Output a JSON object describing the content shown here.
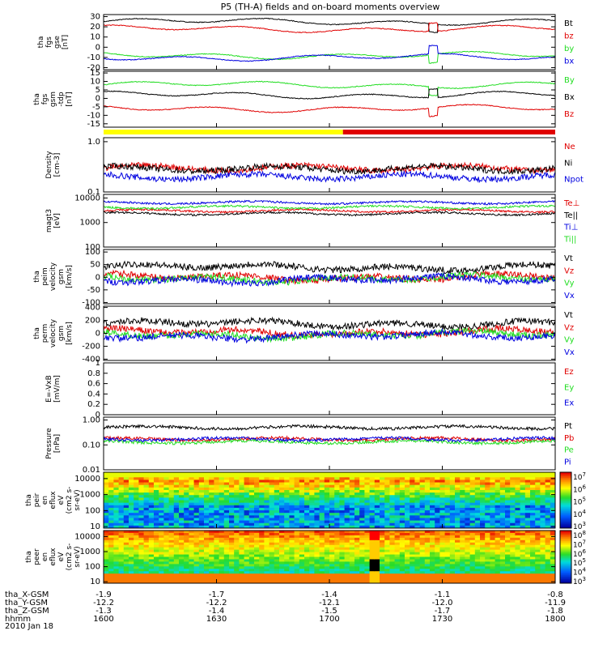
{
  "title": "P5 (TH-A) fields and on-board moments overview",
  "date_label": "2010 Jan 18",
  "colors": {
    "black": "#000000",
    "red": "#e00000",
    "green": "#22dd22",
    "blue": "#0000e0",
    "yellow": "#ffff00"
  },
  "chart_data": [
    {
      "type": "line",
      "name": "fgs_gse",
      "ylabel": [
        "tha",
        "fgs",
        "gse",
        "[nT]"
      ],
      "ylim": [
        -22,
        32
      ],
      "yticks": [
        30,
        20,
        10,
        0,
        -10,
        -20
      ],
      "series": [
        {
          "name": "Bt",
          "color": "black",
          "level": 25
        },
        {
          "name": "bz",
          "color": "red",
          "level": 18
        },
        {
          "name": "by",
          "color": "green",
          "level": -8
        },
        {
          "name": "bx",
          "color": "blue",
          "level": -10
        }
      ]
    },
    {
      "type": "line",
      "name": "fgs_gsm",
      "ylabel": [
        "tha",
        "fgs",
        "gsm",
        "-tdp",
        "[nT]"
      ],
      "ylim": [
        -17,
        16
      ],
      "yticks": [
        15,
        10,
        5,
        0,
        -5,
        -10,
        -15
      ],
      "series": [
        {
          "name": "By",
          "color": "green",
          "level": 8
        },
        {
          "name": "Bx",
          "color": "black",
          "level": 2
        },
        {
          "name": "Bz",
          "color": "red",
          "level": -6
        }
      ]
    },
    {
      "type": "line",
      "name": "density",
      "ylabel": [
        "Density",
        "[cm-3]"
      ],
      "log": true,
      "ylim": [
        0.1,
        1.2
      ],
      "yticks": [
        {
          "v": 1.0,
          "t": "1.0"
        },
        {
          "v": 0.1,
          "t": "0.1"
        }
      ],
      "series": [
        {
          "name": "Ne",
          "color": "red",
          "level": 0.3
        },
        {
          "name": "Ni",
          "color": "black",
          "level": 0.29
        },
        {
          "name": "Npot",
          "color": "blue",
          "level": 0.2
        }
      ]
    },
    {
      "type": "line",
      "name": "temperature",
      "ylabel": [
        "magt3",
        "[eV]"
      ],
      "log": true,
      "ylim": [
        100,
        14000
      ],
      "yticks": [
        {
          "v": 10000,
          "t": "10000"
        },
        {
          "v": 1000,
          "t": "1000"
        },
        {
          "v": 100,
          "t": "100"
        }
      ],
      "series": [
        {
          "name": "Te⊥",
          "color": "red",
          "level": 3000
        },
        {
          "name": "Te||",
          "color": "black",
          "level": 2300
        },
        {
          "name": "Ti⊥",
          "color": "blue",
          "level": 6500
        },
        {
          "name": "Ti||",
          "color": "green",
          "level": 4200
        }
      ]
    },
    {
      "type": "line",
      "name": "peim_velocity",
      "ylabel": [
        "tha",
        "peim",
        "velocity",
        "gsm",
        "[km/s]"
      ],
      "ylim": [
        -105,
        110
      ],
      "yticks": [
        100,
        50,
        0,
        -50,
        -100
      ],
      "series": [
        {
          "name": "Vt",
          "color": "black",
          "level": 40
        },
        {
          "name": "Vz",
          "color": "red",
          "level": 0
        },
        {
          "name": "Vy",
          "color": "green",
          "level": -5
        },
        {
          "name": "Vx",
          "color": "blue",
          "level": -10
        }
      ]
    },
    {
      "type": "line",
      "name": "perm_velocity",
      "ylabel": [
        "tha",
        "perm",
        "velocity",
        "gsm",
        "[km/s]"
      ],
      "ylim": [
        -420,
        420
      ],
      "yticks": [
        400,
        200,
        0,
        -200,
        -400
      ],
      "series": [
        {
          "name": "Vt",
          "color": "black",
          "level": 150
        },
        {
          "name": "Vz",
          "color": "red",
          "level": 20
        },
        {
          "name": "Vy",
          "color": "green",
          "level": -20
        },
        {
          "name": "Vx",
          "color": "blue",
          "level": -40
        }
      ]
    },
    {
      "type": "line",
      "name": "efield",
      "ylabel": [
        "E=-VxB",
        "[mV/m]"
      ],
      "ylim": [
        0,
        1
      ],
      "yticks": [
        1.0,
        0.8,
        0.6,
        0.4,
        0.2,
        0.0
      ],
      "series": [
        {
          "name": "Ez",
          "color": "red"
        },
        {
          "name": "Ey",
          "color": "green"
        },
        {
          "name": "Ex",
          "color": "blue"
        }
      ]
    },
    {
      "type": "line",
      "name": "pressure",
      "ylabel": [
        "Pressure",
        "[nPa]"
      ],
      "log": true,
      "ylim": [
        0.01,
        1.3
      ],
      "yticks": [
        {
          "v": 1.0,
          "t": "1.00"
        },
        {
          "v": 0.1,
          "t": "0.10"
        },
        {
          "v": 0.01,
          "t": "0.01"
        }
      ],
      "series": [
        {
          "name": "Pt",
          "color": "black",
          "level": 0.5
        },
        {
          "name": "Pb",
          "color": "red",
          "level": 0.17
        },
        {
          "name": "Pe",
          "color": "green",
          "level": 0.13
        },
        {
          "name": "Pi",
          "color": "blue",
          "level": 0.17
        }
      ]
    },
    {
      "type": "heatmap",
      "name": "peir_spec",
      "ylabel": [
        "tha",
        "peir",
        "en",
        "eflux",
        "eV",
        "(cm2 s-",
        "sr-eV)"
      ],
      "log": true,
      "ylim": [
        8,
        25000
      ],
      "yticks": [
        {
          "v": 10000,
          "t": "10000"
        },
        {
          "v": 1000,
          "t": "1000"
        },
        {
          "v": 100,
          "t": "100"
        },
        {
          "v": 10,
          "t": "10"
        }
      ],
      "colorbar": {
        "range": [
          3,
          7
        ],
        "labels": [
          "10^7",
          "10^6",
          "10^5",
          "10^4",
          "10^3"
        ]
      }
    },
    {
      "type": "heatmap",
      "name": "peer_spec",
      "ylabel": [
        "tha",
        "peer",
        "en",
        "eflux",
        "eV",
        "(cm2 s-",
        "sr-eV)"
      ],
      "log": true,
      "ylim": [
        8,
        25000
      ],
      "yticks": [
        {
          "v": 10000,
          "t": "10000"
        },
        {
          "v": 1000,
          "t": "1000"
        },
        {
          "v": 100,
          "t": "100"
        },
        {
          "v": 10,
          "t": "10"
        }
      ],
      "colorbar": {
        "range": [
          3,
          8
        ],
        "labels": [
          "10^8",
          "10^7",
          "10^6",
          "10^5",
          "10^4",
          "10^3"
        ]
      }
    }
  ],
  "state_bar": {
    "segments": [
      {
        "color": "yellow",
        "from": 0,
        "to": 0.53
      },
      {
        "color": "red",
        "from": 0.53,
        "to": 1.0
      }
    ]
  },
  "x_axis": {
    "rows": [
      {
        "label": "tha_X-GSM",
        "values": [
          "-1.9",
          "-1.7",
          "-1.4",
          "-1.1",
          "-0.8"
        ]
      },
      {
        "label": "tha_Y-GSM",
        "values": [
          "-12.2",
          "-12.2",
          "-12.1",
          "-12.0",
          "-11.9"
        ]
      },
      {
        "label": "tha_Z-GSM",
        "values": [
          "-1.3",
          "-1.4",
          "-1.5",
          "-1.7",
          "-1.8"
        ]
      },
      {
        "label": "hhmm",
        "values": [
          "1600",
          "1630",
          "1700",
          "1730",
          "1800"
        ]
      }
    ]
  },
  "legend_labels": {
    "fgs_gse": [
      "Bt",
      "bz",
      "by",
      "bx"
    ],
    "fgs_gsm": [
      "By",
      "Bx",
      "Bz"
    ],
    "density": [
      "Ne",
      "Ni",
      "Npot"
    ],
    "temperature": [
      "Te⊥",
      "Te||",
      "Ti⊥",
      "Ti||"
    ],
    "peim_velocity": [
      "Vt",
      "Vz",
      "Vy",
      "Vx"
    ],
    "perm_velocity": [
      "Vt",
      "Vz",
      "Vy",
      "Vx"
    ],
    "efield": [
      "Ez",
      "Ey",
      "Ex"
    ],
    "pressure": [
      "Pt",
      "Pb",
      "Pe",
      "Pi"
    ]
  }
}
